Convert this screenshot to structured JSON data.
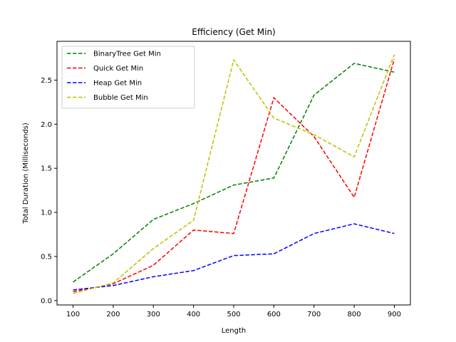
{
  "chart_data": {
    "type": "line",
    "title": "Efficiency (Get Min)",
    "xlabel": "Length",
    "ylabel": "Total Duration (Milliseconds)",
    "x": [
      100,
      200,
      300,
      400,
      500,
      600,
      700,
      800,
      900
    ],
    "xticks": [
      "100",
      "200",
      "300",
      "400",
      "500",
      "600",
      "700",
      "800",
      "900"
    ],
    "yticks": [
      "0.0",
      "0.5",
      "1.0",
      "1.5",
      "2.0",
      "2.5"
    ],
    "ytick_values": [
      0.0,
      0.5,
      1.0,
      1.5,
      2.0,
      2.5
    ],
    "xlim": [
      60,
      940
    ],
    "ylim": [
      -0.05,
      2.94
    ],
    "grid": false,
    "legend_position": "top-left",
    "series": [
      {
        "name": "BinaryTree Get Min",
        "color": "#008000",
        "values": [
          0.21,
          0.53,
          0.92,
          1.1,
          1.31,
          1.39,
          2.33,
          2.69,
          2.59
        ]
      },
      {
        "name": "Quick Get Min",
        "color": "#ff0000",
        "values": [
          0.1,
          0.19,
          0.4,
          0.8,
          0.76,
          2.3,
          1.86,
          1.17,
          2.74
        ]
      },
      {
        "name": "Heap Get Min",
        "color": "#0000ff",
        "values": [
          0.12,
          0.17,
          0.27,
          0.34,
          0.51,
          0.53,
          0.76,
          0.87,
          0.76
        ]
      },
      {
        "name": "Bubble Get Min",
        "color": "#bfbf00",
        "values": [
          0.08,
          0.2,
          0.59,
          0.91,
          2.73,
          2.07,
          1.88,
          1.63,
          2.79
        ]
      }
    ]
  }
}
